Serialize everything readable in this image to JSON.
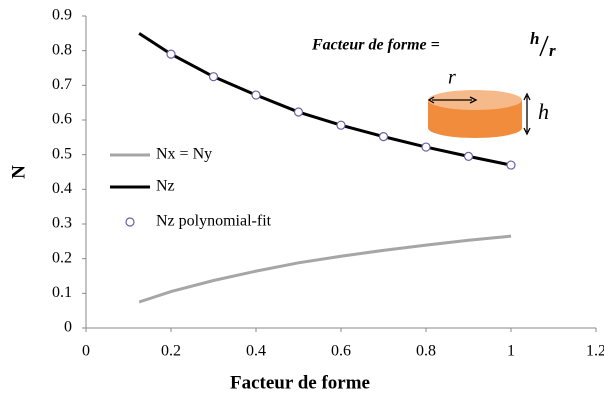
{
  "chart_data": {
    "type": "line",
    "x_label": "Facteur de forme",
    "y_label": "N",
    "x": [
      0.125,
      0.2,
      0.3,
      0.4,
      0.5,
      0.6,
      0.7,
      0.8,
      0.9,
      1.0
    ],
    "series": [
      {
        "name": "Nx = Ny",
        "type": "line",
        "color": "#a6a6a6",
        "values": [
          0.075,
          0.105,
          0.137,
          0.164,
          0.188,
          0.207,
          0.224,
          0.239,
          0.253,
          0.265
        ]
      },
      {
        "name": "Nz",
        "type": "line",
        "color": "#000000",
        "values": [
          0.85,
          0.79,
          0.725,
          0.672,
          0.623,
          0.585,
          0.552,
          0.522,
          0.495,
          0.47
        ]
      },
      {
        "name": "Nz polynomial-fit",
        "type": "scatter",
        "color": "#6b5fa8",
        "values": [
          null,
          0.79,
          0.725,
          0.672,
          0.623,
          0.585,
          0.552,
          0.522,
          0.495,
          0.47
        ]
      }
    ],
    "xlim": [
      0,
      1.2
    ],
    "xticks": [
      0,
      0.2,
      0.4,
      0.6,
      0.8,
      1,
      1.2
    ],
    "ylim": [
      0,
      0.9
    ],
    "yticks": [
      0,
      0.1,
      0.2,
      0.3,
      0.4,
      0.5,
      0.6,
      0.7,
      0.8,
      0.9
    ],
    "grid": false,
    "legend": "left",
    "annotations": [
      "Facteur de forme =",
      "h",
      "r",
      "r",
      "h"
    ]
  }
}
